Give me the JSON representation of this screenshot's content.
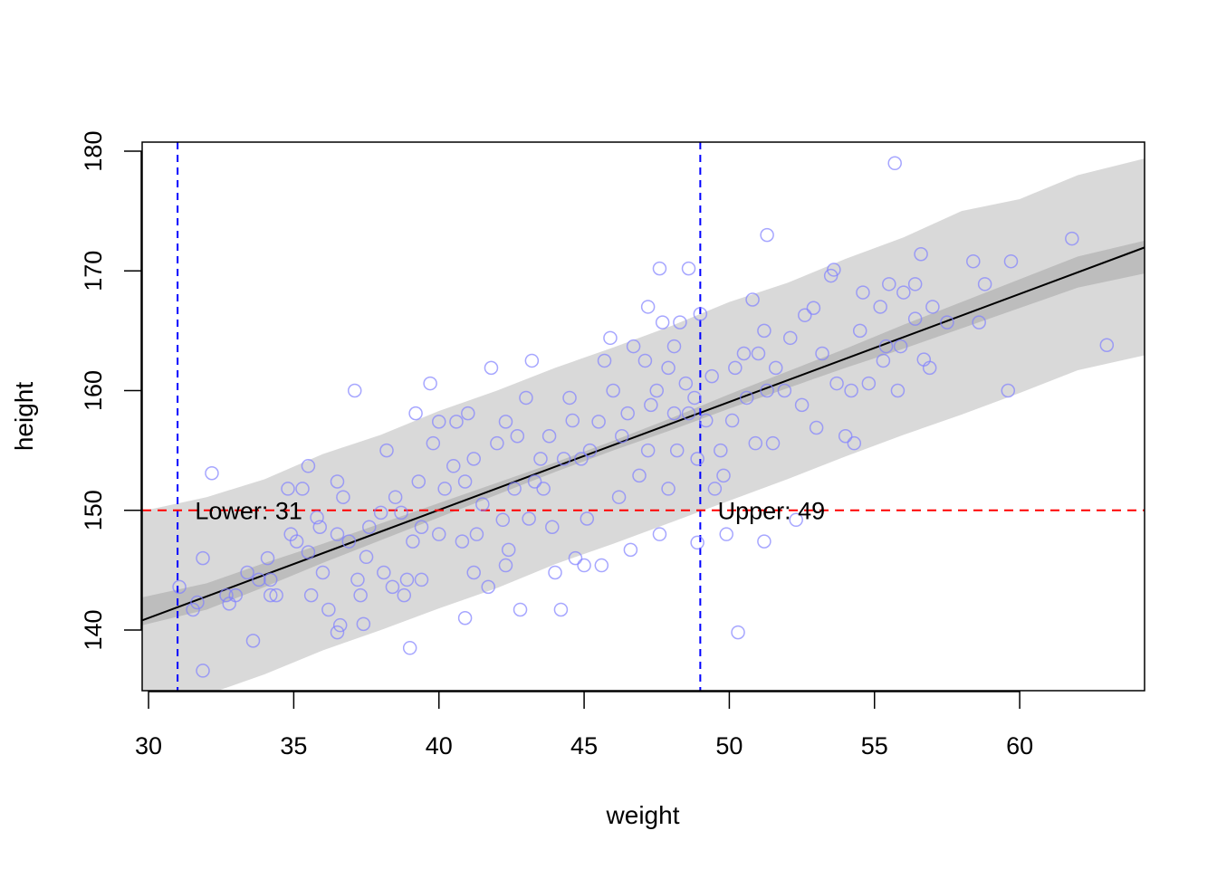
{
  "chart_data": {
    "type": "scatter",
    "title": "",
    "xlabel": "weight",
    "ylabel": "height",
    "xlim": [
      29.78,
      64.3
    ],
    "ylim": [
      134.93,
      180.76
    ],
    "xticks": [
      30,
      35,
      40,
      45,
      50,
      55,
      60
    ],
    "yticks": [
      140,
      150,
      160,
      170,
      180
    ],
    "grid": false,
    "colors": {
      "points": "#8080ff",
      "line": "#000000",
      "mean_band": "#bdbdbd",
      "pred_band": "#d9d9d9",
      "vline": "#0000ff",
      "hline": "#ff0000"
    },
    "regression_line": {
      "intercept_at_30": 141.0,
      "slope": 0.9026
    },
    "intervals": {
      "x": [
        30,
        32,
        34,
        36,
        38,
        40,
        42,
        44,
        46,
        48,
        50,
        52,
        54,
        56,
        58,
        60,
        62,
        64
      ],
      "pred_lower": [
        132.8,
        134.6,
        136.3,
        138.3,
        140.0,
        141.8,
        143.5,
        145.5,
        147.2,
        149.0,
        150.8,
        152.6,
        154.5,
        156.3,
        158.0,
        159.8,
        161.7,
        163.5
      ],
      "pred_upper": [
        149.4,
        151.1,
        152.6,
        154.7,
        156.3,
        158.3,
        160.0,
        161.9,
        163.6,
        165.4,
        167.4,
        169.0,
        171.0,
        172.8,
        175.0,
        176.0,
        178.0,
        180.0
      ],
      "mean_lower": [
        139.8,
        141.7,
        143.6,
        145.6,
        147.5,
        149.4,
        151.3,
        153.2,
        155.0,
        156.7,
        158.5,
        160.2,
        161.9,
        163.5,
        165.2,
        166.9,
        168.6,
        170.3
      ],
      "mean_upper": [
        142.2,
        143.9,
        145.6,
        147.2,
        148.9,
        150.6,
        152.3,
        154.0,
        155.8,
        157.7,
        159.7,
        161.6,
        163.5,
        165.5,
        167.4,
        169.3,
        171.2,
        173.1
      ]
    },
    "reference_lines": {
      "vertical": [
        31,
        49
      ],
      "horizontal": [
        150
      ]
    },
    "annotations": [
      {
        "text": "Lower: 31",
        "x": 31.6,
        "y": 150
      },
      {
        "text": "Upper: 49",
        "x": 49.6,
        "y": 150
      }
    ],
    "points": [
      [
        31.06,
        143.6
      ],
      [
        31.53,
        141.7
      ],
      [
        31.68,
        142.3
      ],
      [
        31.87,
        146.0
      ],
      [
        31.87,
        136.6
      ],
      [
        32.18,
        153.1
      ],
      [
        32.68,
        142.9
      ],
      [
        32.78,
        142.2
      ],
      [
        33.0,
        142.9
      ],
      [
        33.4,
        144.8
      ],
      [
        33.6,
        139.1
      ],
      [
        33.8,
        144.2
      ],
      [
        34.1,
        146.0
      ],
      [
        34.2,
        144.2
      ],
      [
        34.2,
        142.9
      ],
      [
        34.4,
        142.9
      ],
      [
        34.8,
        151.8
      ],
      [
        34.9,
        148.0
      ],
      [
        35.1,
        147.4
      ],
      [
        35.3,
        151.8
      ],
      [
        35.5,
        153.7
      ],
      [
        35.5,
        146.5
      ],
      [
        35.6,
        142.9
      ],
      [
        35.8,
        149.4
      ],
      [
        35.9,
        148.6
      ],
      [
        36.0,
        144.8
      ],
      [
        36.2,
        141.7
      ],
      [
        36.5,
        152.4
      ],
      [
        36.5,
        148.0
      ],
      [
        36.5,
        139.8
      ],
      [
        36.6,
        140.4
      ],
      [
        36.7,
        151.1
      ],
      [
        36.9,
        147.4
      ],
      [
        37.1,
        160.0
      ],
      [
        37.2,
        144.2
      ],
      [
        37.3,
        142.9
      ],
      [
        37.4,
        140.5
      ],
      [
        37.5,
        146.1
      ],
      [
        37.6,
        148.6
      ],
      [
        38.0,
        149.8
      ],
      [
        38.1,
        144.8
      ],
      [
        38.2,
        155.0
      ],
      [
        38.4,
        143.6
      ],
      [
        38.5,
        151.1
      ],
      [
        38.7,
        149.8
      ],
      [
        38.8,
        142.9
      ],
      [
        38.9,
        144.2
      ],
      [
        39.0,
        138.5
      ],
      [
        39.1,
        147.4
      ],
      [
        39.2,
        158.1
      ],
      [
        39.3,
        152.4
      ],
      [
        39.4,
        148.6
      ],
      [
        39.4,
        144.2
      ],
      [
        39.7,
        160.6
      ],
      [
        39.8,
        155.6
      ],
      [
        40.0,
        157.4
      ],
      [
        40.0,
        148.0
      ],
      [
        40.2,
        151.8
      ],
      [
        40.5,
        153.7
      ],
      [
        40.6,
        157.4
      ],
      [
        40.8,
        147.4
      ],
      [
        40.9,
        152.4
      ],
      [
        40.9,
        141.0
      ],
      [
        41.0,
        158.1
      ],
      [
        41.2,
        144.8
      ],
      [
        41.2,
        154.3
      ],
      [
        41.3,
        148.0
      ],
      [
        41.5,
        150.5
      ],
      [
        41.7,
        143.6
      ],
      [
        41.8,
        161.9
      ],
      [
        42.0,
        155.6
      ],
      [
        42.2,
        149.2
      ],
      [
        42.3,
        157.4
      ],
      [
        42.3,
        145.4
      ],
      [
        42.4,
        146.7
      ],
      [
        42.6,
        151.8
      ],
      [
        42.7,
        156.2
      ],
      [
        42.8,
        141.7
      ],
      [
        43.0,
        159.4
      ],
      [
        43.1,
        149.3
      ],
      [
        43.2,
        162.5
      ],
      [
        43.3,
        152.4
      ],
      [
        43.5,
        154.3
      ],
      [
        43.6,
        151.8
      ],
      [
        43.8,
        156.2
      ],
      [
        43.9,
        148.6
      ],
      [
        44.0,
        144.8
      ],
      [
        44.2,
        141.7
      ],
      [
        44.3,
        154.3
      ],
      [
        44.5,
        159.4
      ],
      [
        44.6,
        157.5
      ],
      [
        44.7,
        146.0
      ],
      [
        44.9,
        154.3
      ],
      [
        45.0,
        145.4
      ],
      [
        45.1,
        149.3
      ],
      [
        45.2,
        155.0
      ],
      [
        45.5,
        157.4
      ],
      [
        45.6,
        145.4
      ],
      [
        45.7,
        162.5
      ],
      [
        45.9,
        164.4
      ],
      [
        46.0,
        160.0
      ],
      [
        46.2,
        151.1
      ],
      [
        46.3,
        156.2
      ],
      [
        46.5,
        158.1
      ],
      [
        46.6,
        146.7
      ],
      [
        46.7,
        163.7
      ],
      [
        46.9,
        152.9
      ],
      [
        47.1,
        162.5
      ],
      [
        47.2,
        167.0
      ],
      [
        47.2,
        155.0
      ],
      [
        47.3,
        158.8
      ],
      [
        47.5,
        160.0
      ],
      [
        47.6,
        170.2
      ],
      [
        47.6,
        148.0
      ],
      [
        47.7,
        165.7
      ],
      [
        47.9,
        161.9
      ],
      [
        47.9,
        151.8
      ],
      [
        48.1,
        158.1
      ],
      [
        48.1,
        163.7
      ],
      [
        48.2,
        155.0
      ],
      [
        48.3,
        165.7
      ],
      [
        48.5,
        160.6
      ],
      [
        48.6,
        170.2
      ],
      [
        48.6,
        158.1
      ],
      [
        48.8,
        159.4
      ],
      [
        48.9,
        154.3
      ],
      [
        49.0,
        166.4
      ],
      [
        48.9,
        147.3
      ],
      [
        49.2,
        157.5
      ],
      [
        49.4,
        161.2
      ],
      [
        49.5,
        151.8
      ],
      [
        49.7,
        155.0
      ],
      [
        49.8,
        152.9
      ],
      [
        49.9,
        148.0
      ],
      [
        50.1,
        157.5
      ],
      [
        50.2,
        161.9
      ],
      [
        50.3,
        139.8
      ],
      [
        50.5,
        163.1
      ],
      [
        50.6,
        159.4
      ],
      [
        50.8,
        167.6
      ],
      [
        50.9,
        155.6
      ],
      [
        51.0,
        163.1
      ],
      [
        51.2,
        165.0
      ],
      [
        51.2,
        147.4
      ],
      [
        51.3,
        173.0
      ],
      [
        51.3,
        160.0
      ],
      [
        51.5,
        155.6
      ],
      [
        51.6,
        161.9
      ],
      [
        51.9,
        160.0
      ],
      [
        52.1,
        164.4
      ],
      [
        52.3,
        149.2
      ],
      [
        52.5,
        158.8
      ],
      [
        52.6,
        166.3
      ],
      [
        52.9,
        166.9
      ],
      [
        53.0,
        156.9
      ],
      [
        53.2,
        163.1
      ],
      [
        53.5,
        169.6
      ],
      [
        53.6,
        170.1
      ],
      [
        53.7,
        160.6
      ],
      [
        54.0,
        156.2
      ],
      [
        54.2,
        160.0
      ],
      [
        54.3,
        155.6
      ],
      [
        54.5,
        165.0
      ],
      [
        54.6,
        168.2
      ],
      [
        54.8,
        160.6
      ],
      [
        55.2,
        167.0
      ],
      [
        55.3,
        162.5
      ],
      [
        55.4,
        163.7
      ],
      [
        55.5,
        168.9
      ],
      [
        55.7,
        179.0
      ],
      [
        55.8,
        160.0
      ],
      [
        55.9,
        163.7
      ],
      [
        56.0,
        168.2
      ],
      [
        56.4,
        168.9
      ],
      [
        56.4,
        166.0
      ],
      [
        56.6,
        171.4
      ],
      [
        56.7,
        162.6
      ],
      [
        56.9,
        161.9
      ],
      [
        57.0,
        167.0
      ],
      [
        57.5,
        165.7
      ],
      [
        58.4,
        170.8
      ],
      [
        58.6,
        165.7
      ],
      [
        58.8,
        168.9
      ],
      [
        59.6,
        160.0
      ],
      [
        59.7,
        170.8
      ],
      [
        61.8,
        172.7
      ],
      [
        63.0,
        163.8
      ]
    ]
  }
}
